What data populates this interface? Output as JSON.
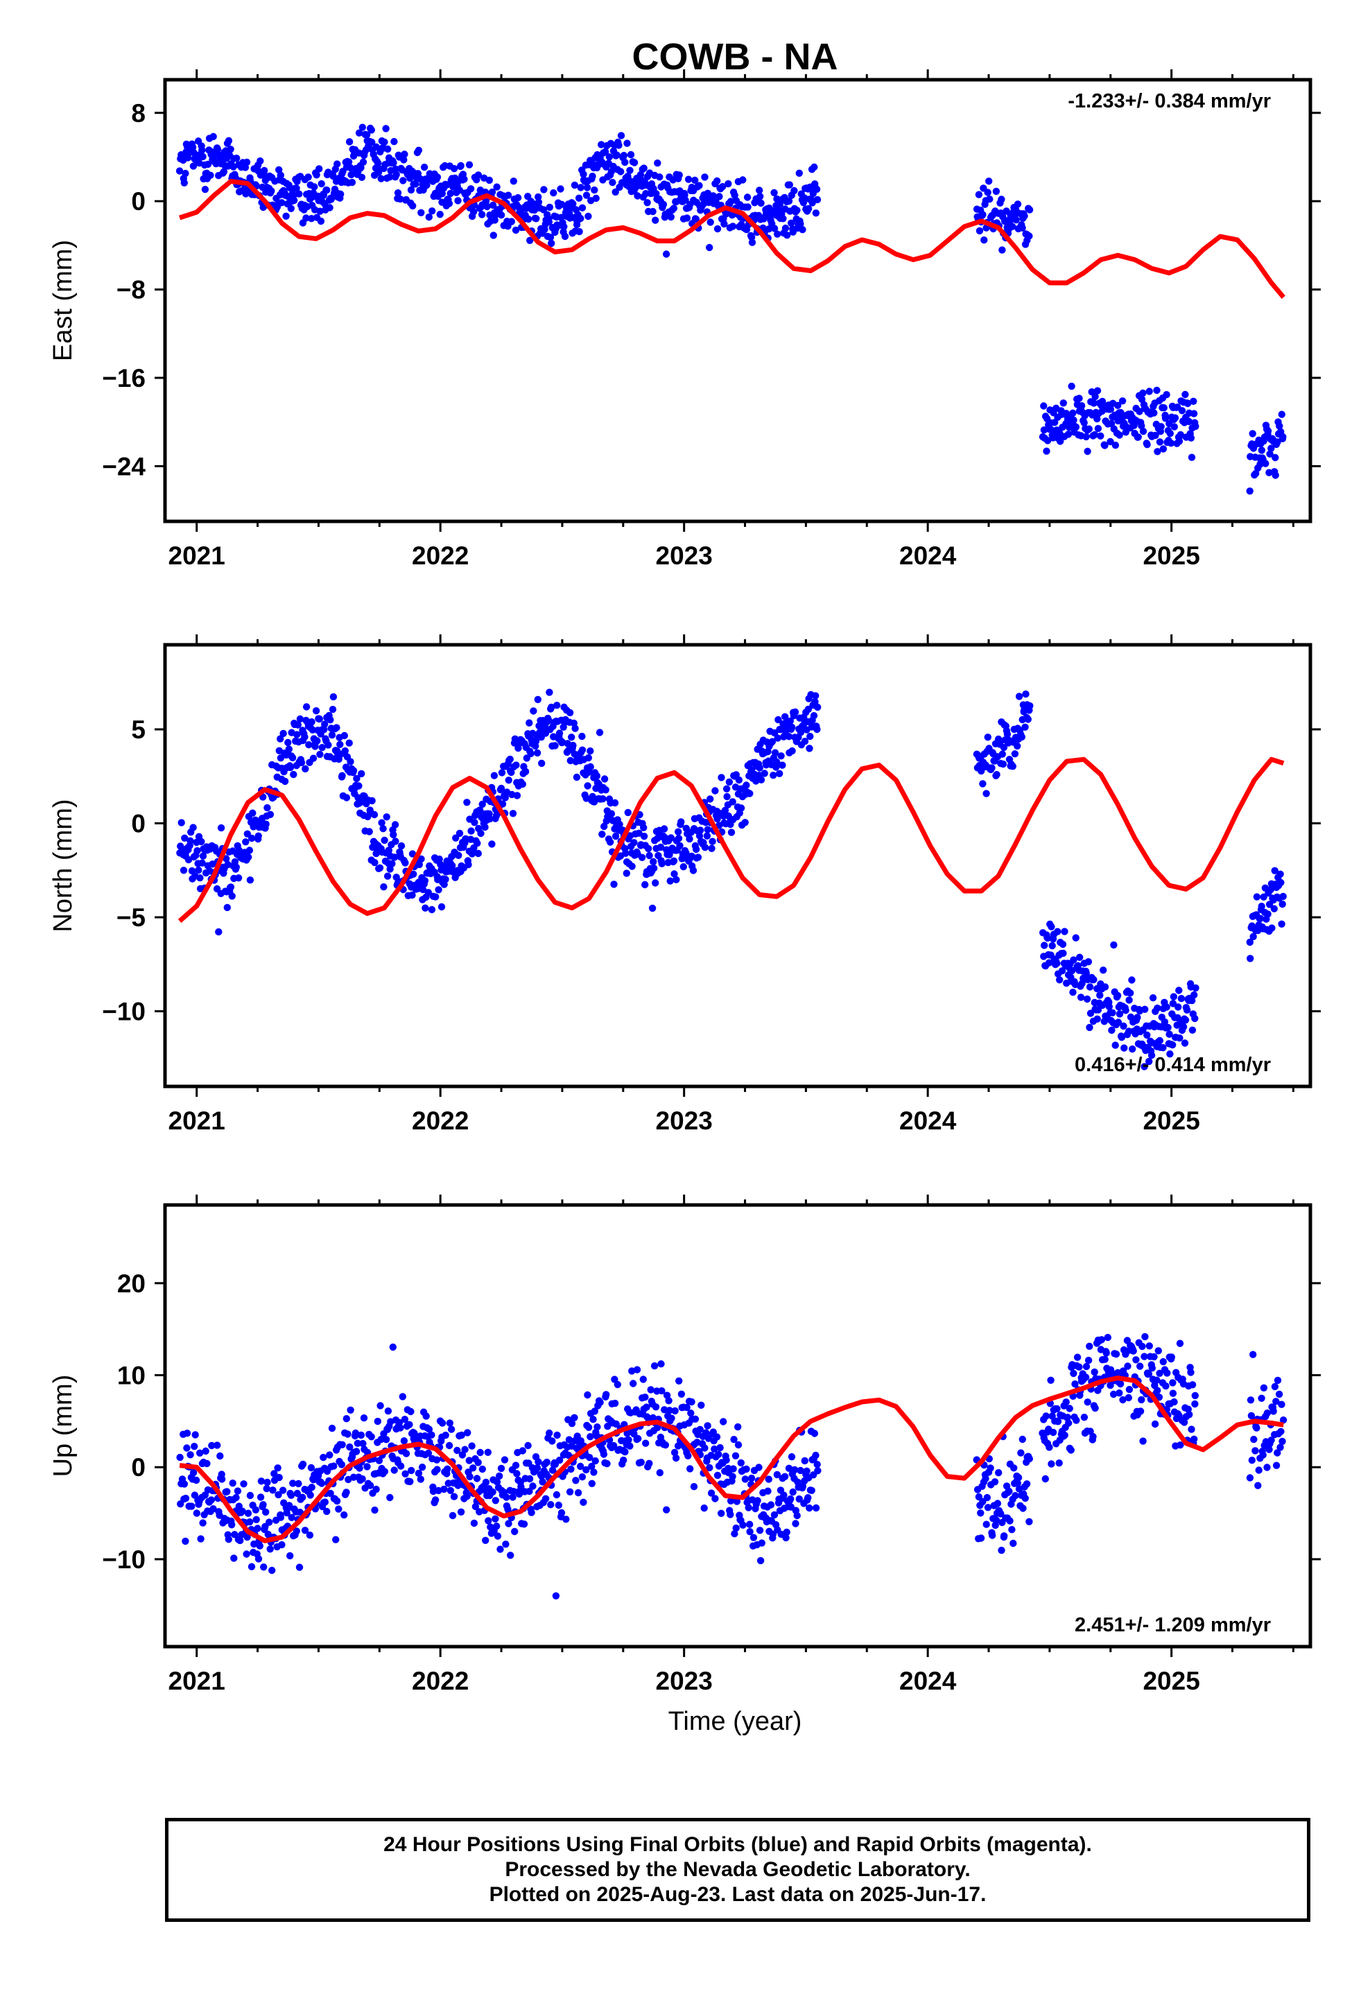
{
  "title": "COWB - NA",
  "x_label": "Time (year)",
  "caption": {
    "line1": "24 Hour Positions Using Final Orbits (blue) and Rapid Orbits (magenta).",
    "line2": "Processed by the Nevada Geodetic Laboratory.",
    "line3": "Plotted on 2025-Aug-23. Last data on 2025-Jun-17."
  },
  "colors": {
    "points": "#0000ff",
    "model": "#ff0000",
    "frame": "#000000"
  },
  "chart_data": [
    {
      "type": "scatter",
      "ylabel": "East (mm)",
      "rate_label": "-1.233+/- 0.384 mm/yr",
      "rate_position": "top-right",
      "xlim": [
        2020.87,
        2025.57
      ],
      "ylim": [
        -29,
        11
      ],
      "x_ticks": [
        2021,
        2022,
        2023,
        2024,
        2025
      ],
      "y_ticks": [
        8,
        0,
        -8,
        -16,
        -24
      ],
      "segments": [
        {
          "t_start": 2020.93,
          "t_end": 2023.55,
          "points": [
            [
              2020.95,
              3.5
            ],
            [
              2021.1,
              4.2
            ],
            [
              2021.2,
              2.0
            ],
            [
              2021.3,
              0.5
            ],
            [
              2021.4,
              0.8
            ],
            [
              2021.5,
              0.6
            ],
            [
              2021.6,
              2.5
            ],
            [
              2021.7,
              5.0
            ],
            [
              2021.75,
              4.5
            ],
            [
              2021.85,
              2.0
            ],
            [
              2021.95,
              1.5
            ],
            [
              2022.05,
              1.5
            ],
            [
              2022.15,
              0.5
            ],
            [
              2022.25,
              -0.5
            ],
            [
              2022.35,
              -1.5
            ],
            [
              2022.45,
              -1.8
            ],
            [
              2022.55,
              -0.5
            ],
            [
              2022.65,
              3.5
            ],
            [
              2022.75,
              3.5
            ],
            [
              2022.85,
              1.0
            ],
            [
              2022.95,
              0.8
            ],
            [
              2023.05,
              0.0
            ],
            [
              2023.15,
              -0.5
            ],
            [
              2023.25,
              -1.0
            ],
            [
              2023.35,
              -1.5
            ],
            [
              2023.45,
              -1.0
            ],
            [
              2023.52,
              0.8
            ]
          ]
        },
        {
          "t_start": 2024.2,
          "t_end": 2024.42,
          "points": [
            [
              2024.22,
              -1.0
            ],
            [
              2024.27,
              -1.5
            ],
            [
              2024.32,
              -2.0
            ],
            [
              2024.37,
              -2.2
            ],
            [
              2024.41,
              -2.5
            ]
          ]
        },
        {
          "t_start": 2024.47,
          "t_end": 2025.1,
          "points": [
            [
              2024.5,
              -20.5
            ],
            [
              2024.6,
              -19.8
            ],
            [
              2024.7,
              -19.2
            ],
            [
              2024.8,
              -19.8
            ],
            [
              2024.9,
              -19.5
            ],
            [
              2025.0,
              -19.6
            ],
            [
              2025.08,
              -20.3
            ]
          ]
        },
        {
          "t_start": 2025.32,
          "t_end": 2025.46,
          "points": [
            [
              2025.34,
              -23.2
            ],
            [
              2025.4,
              -22.0
            ],
            [
              2025.45,
              -21.0
            ]
          ]
        }
      ],
      "model": {
        "type": "line",
        "x": [
          2020.93,
          2021.0,
          2021.07,
          2021.14,
          2021.21,
          2021.28,
          2021.35,
          2021.42,
          2021.49,
          2021.56,
          2021.63,
          2021.7,
          2021.77,
          2021.84,
          2021.91,
          2021.98,
          2022.05,
          2022.12,
          2022.19,
          2022.26,
          2022.33,
          2022.4,
          2022.47,
          2022.54,
          2022.61,
          2022.68,
          2022.75,
          2022.82,
          2022.89,
          2022.96,
          2023.03,
          2023.1,
          2023.17,
          2023.24,
          2023.31,
          2023.38,
          2023.45,
          2023.52,
          2023.59,
          2023.66,
          2023.73,
          2023.8,
          2023.87,
          2023.94,
          2024.01,
          2024.08,
          2024.15,
          2024.22,
          2024.29,
          2024.36,
          2024.43,
          2024.5,
          2024.57,
          2024.64,
          2024.71,
          2024.78,
          2024.85,
          2024.92,
          2024.99,
          2025.06,
          2025.13,
          2025.2,
          2025.27,
          2025.34,
          2025.41,
          2025.46
        ],
        "y": [
          -1.5,
          -1.0,
          0.5,
          1.8,
          1.6,
          0.0,
          -2.0,
          -3.2,
          -3.4,
          -2.6,
          -1.5,
          -1.1,
          -1.3,
          -2.1,
          -2.7,
          -2.5,
          -1.5,
          -0.1,
          0.5,
          -0.2,
          -1.8,
          -3.7,
          -4.6,
          -4.4,
          -3.4,
          -2.6,
          -2.4,
          -2.9,
          -3.6,
          -3.6,
          -2.6,
          -1.3,
          -0.6,
          -1.1,
          -2.7,
          -4.7,
          -6.1,
          -6.3,
          -5.4,
          -4.1,
          -3.5,
          -3.9,
          -4.8,
          -5.3,
          -4.9,
          -3.6,
          -2.3,
          -1.8,
          -2.4,
          -4.2,
          -6.2,
          -7.4,
          -7.4,
          -6.5,
          -5.3,
          -4.9,
          -5.3,
          -6.1,
          -6.5,
          -5.9,
          -4.4,
          -3.2,
          -3.5,
          -5.2,
          -7.4,
          -8.7
        ]
      }
    },
    {
      "type": "scatter",
      "ylabel": "North (mm)",
      "rate_label": "0.416+/- 0.414 mm/yr",
      "rate_position": "bottom-right",
      "xlim": [
        2020.87,
        2025.57
      ],
      "ylim": [
        -14,
        9.5
      ],
      "x_ticks": [
        2021,
        2022,
        2023,
        2024,
        2025
      ],
      "y_ticks": [
        5,
        0,
        -5,
        -10
      ],
      "segments": [
        {
          "t_start": 2020.93,
          "t_end": 2023.55,
          "points": [
            [
              2020.95,
              -1.5
            ],
            [
              2021.05,
              -2.0
            ],
            [
              2021.15,
              -2.5
            ],
            [
              2021.25,
              0.0
            ],
            [
              2021.35,
              3.0
            ],
            [
              2021.45,
              4.8
            ],
            [
              2021.55,
              4.6
            ],
            [
              2021.65,
              2.0
            ],
            [
              2021.75,
              -1.5
            ],
            [
              2021.85,
              -2.5
            ],
            [
              2021.95,
              -3.0
            ],
            [
              2022.05,
              -2.5
            ],
            [
              2022.15,
              -0.5
            ],
            [
              2022.25,
              1.5
            ],
            [
              2022.35,
              4.0
            ],
            [
              2022.45,
              5.5
            ],
            [
              2022.55,
              4.0
            ],
            [
              2022.65,
              1.5
            ],
            [
              2022.75,
              -1.0
            ],
            [
              2022.85,
              -1.5
            ],
            [
              2022.95,
              -1.5
            ],
            [
              2023.05,
              -1.0
            ],
            [
              2023.15,
              0.5
            ],
            [
              2023.25,
              2.0
            ],
            [
              2023.35,
              3.5
            ],
            [
              2023.45,
              5.0
            ],
            [
              2023.52,
              5.5
            ]
          ]
        },
        {
          "t_start": 2024.2,
          "t_end": 2024.42,
          "points": [
            [
              2024.22,
              3.0
            ],
            [
              2024.28,
              3.6
            ],
            [
              2024.33,
              4.4
            ],
            [
              2024.38,
              5.4
            ],
            [
              2024.41,
              6.2
            ]
          ]
        },
        {
          "t_start": 2024.47,
          "t_end": 2025.1,
          "points": [
            [
              2024.5,
              -6.3
            ],
            [
              2024.6,
              -7.8
            ],
            [
              2024.7,
              -9.3
            ],
            [
              2024.8,
              -10.5
            ],
            [
              2024.9,
              -11.3
            ],
            [
              2025.0,
              -10.8
            ],
            [
              2025.08,
              -9.8
            ]
          ]
        },
        {
          "t_start": 2025.32,
          "t_end": 2025.46,
          "points": [
            [
              2025.34,
              -5.5
            ],
            [
              2025.4,
              -4.6
            ],
            [
              2025.45,
              -3.8
            ]
          ]
        }
      ],
      "model": {
        "type": "line",
        "x": [
          2020.93,
          2021.0,
          2021.07,
          2021.14,
          2021.21,
          2021.28,
          2021.35,
          2021.42,
          2021.49,
          2021.56,
          2021.63,
          2021.7,
          2021.77,
          2021.84,
          2021.91,
          2021.98,
          2022.05,
          2022.12,
          2022.19,
          2022.26,
          2022.33,
          2022.4,
          2022.47,
          2022.54,
          2022.61,
          2022.68,
          2022.75,
          2022.82,
          2022.89,
          2022.96,
          2023.03,
          2023.1,
          2023.17,
          2023.24,
          2023.31,
          2023.38,
          2023.45,
          2023.52,
          2023.59,
          2023.66,
          2023.73,
          2023.8,
          2023.87,
          2023.94,
          2024.01,
          2024.08,
          2024.15,
          2024.22,
          2024.29,
          2024.36,
          2024.43,
          2024.5,
          2024.57,
          2024.64,
          2024.71,
          2024.78,
          2024.85,
          2024.92,
          2024.99,
          2025.06,
          2025.13,
          2025.2,
          2025.27,
          2025.34,
          2025.41,
          2025.46
        ],
        "y": [
          -5.2,
          -4.4,
          -2.8,
          -0.6,
          1.1,
          1.8,
          1.5,
          0.2,
          -1.5,
          -3.1,
          -4.3,
          -4.8,
          -4.5,
          -3.3,
          -1.6,
          0.4,
          1.9,
          2.4,
          1.9,
          0.4,
          -1.4,
          -3.0,
          -4.2,
          -4.5,
          -4.0,
          -2.6,
          -0.8,
          1.1,
          2.4,
          2.7,
          2.0,
          0.4,
          -1.3,
          -2.9,
          -3.8,
          -3.9,
          -3.3,
          -1.8,
          0.1,
          1.8,
          2.9,
          3.1,
          2.3,
          0.6,
          -1.2,
          -2.7,
          -3.6,
          -3.6,
          -2.8,
          -1.1,
          0.7,
          2.3,
          3.3,
          3.4,
          2.6,
          1.0,
          -0.8,
          -2.3,
          -3.3,
          -3.5,
          -2.9,
          -1.3,
          0.6,
          2.3,
          3.4,
          3.2
        ]
      }
    },
    {
      "type": "scatter",
      "ylabel": "Up (mm)",
      "rate_label": "2.451+/- 1.209 mm/yr",
      "rate_position": "bottom-right",
      "xlim": [
        2020.87,
        2025.57
      ],
      "ylim": [
        -19.5,
        28.5
      ],
      "x_ticks": [
        2021,
        2022,
        2023,
        2024,
        2025
      ],
      "y_ticks": [
        20,
        10,
        0,
        -10
      ],
      "segments": [
        {
          "t_start": 2020.93,
          "t_end": 2023.55,
          "points": [
            [
              2020.95,
              0.0
            ],
            [
              2021.05,
              -2.0
            ],
            [
              2021.15,
              -5.0
            ],
            [
              2021.25,
              -7.0
            ],
            [
              2021.35,
              -6.0
            ],
            [
              2021.45,
              -4.0
            ],
            [
              2021.55,
              -1.0
            ],
            [
              2021.65,
              1.0
            ],
            [
              2021.75,
              2.0
            ],
            [
              2021.85,
              3.0
            ],
            [
              2021.95,
              2.0
            ],
            [
              2022.05,
              0.0
            ],
            [
              2022.15,
              -3.0
            ],
            [
              2022.25,
              -4.0
            ],
            [
              2022.35,
              -3.0
            ],
            [
              2022.45,
              -1.0
            ],
            [
              2022.55,
              1.0
            ],
            [
              2022.65,
              3.0
            ],
            [
              2022.75,
              4.0
            ],
            [
              2022.85,
              5.0
            ],
            [
              2022.95,
              5.0
            ],
            [
              2023.05,
              3.0
            ],
            [
              2023.15,
              0.0
            ],
            [
              2023.25,
              -3.0
            ],
            [
              2023.35,
              -4.0
            ],
            [
              2023.45,
              -2.0
            ],
            [
              2023.52,
              -1.0
            ]
          ]
        },
        {
          "t_start": 2024.2,
          "t_end": 2024.42,
          "points": [
            [
              2024.22,
              -3.0
            ],
            [
              2024.27,
              -4.0
            ],
            [
              2024.32,
              -4.0
            ],
            [
              2024.37,
              -2.0
            ],
            [
              2024.41,
              -1.0
            ]
          ]
        },
        {
          "t_start": 2024.47,
          "t_end": 2025.1,
          "points": [
            [
              2024.5,
              4.0
            ],
            [
              2024.6,
              7.0
            ],
            [
              2024.7,
              10.0
            ],
            [
              2024.8,
              11.0
            ],
            [
              2024.9,
              10.0
            ],
            [
              2025.0,
              8.0
            ],
            [
              2025.08,
              6.0
            ]
          ]
        },
        {
          "t_start": 2025.32,
          "t_end": 2025.46,
          "points": [
            [
              2025.34,
              3.0
            ],
            [
              2025.4,
              4.0
            ],
            [
              2025.45,
              5.0
            ]
          ]
        }
      ],
      "model": {
        "type": "line",
        "x": [
          2020.93,
          2021.0,
          2021.07,
          2021.14,
          2021.21,
          2021.28,
          2021.35,
          2021.42,
          2021.49,
          2021.56,
          2021.63,
          2021.7,
          2021.77,
          2021.84,
          2021.91,
          2021.98,
          2022.05,
          2022.12,
          2022.19,
          2022.26,
          2022.33,
          2022.4,
          2022.47,
          2022.54,
          2022.61,
          2022.68,
          2022.75,
          2022.82,
          2022.89,
          2022.96,
          2023.03,
          2023.1,
          2023.17,
          2023.24,
          2023.31,
          2023.38,
          2023.45,
          2023.52,
          2023.59,
          2023.66,
          2023.73,
          2023.8,
          2023.87,
          2023.94,
          2024.01,
          2024.08,
          2024.15,
          2024.22,
          2024.29,
          2024.36,
          2024.43,
          2024.5,
          2024.57,
          2024.64,
          2024.71,
          2024.78,
          2024.85,
          2024.92,
          2024.99,
          2025.06,
          2025.13,
          2025.2,
          2025.27,
          2025.34,
          2025.41,
          2025.46
        ],
        "y": [
          0.2,
          0.0,
          -2.0,
          -4.7,
          -7.0,
          -8.0,
          -7.6,
          -5.9,
          -3.7,
          -1.5,
          0.2,
          1.1,
          1.7,
          2.2,
          2.5,
          2.0,
          0.3,
          -2.2,
          -4.4,
          -5.3,
          -4.8,
          -3.1,
          -1.0,
          0.9,
          2.3,
          3.3,
          4.1,
          4.7,
          4.9,
          4.2,
          2.0,
          -1.0,
          -3.1,
          -3.3,
          -1.6,
          1.0,
          3.4,
          5.0,
          5.8,
          6.5,
          7.1,
          7.3,
          6.6,
          4.4,
          1.3,
          -1.0,
          -1.2,
          0.6,
          3.2,
          5.4,
          6.7,
          7.4,
          8.0,
          8.6,
          9.3,
          9.7,
          9.4,
          7.8,
          5.1,
          2.6,
          1.9,
          3.2,
          4.6,
          5.0,
          4.8,
          4.6
        ]
      }
    }
  ]
}
